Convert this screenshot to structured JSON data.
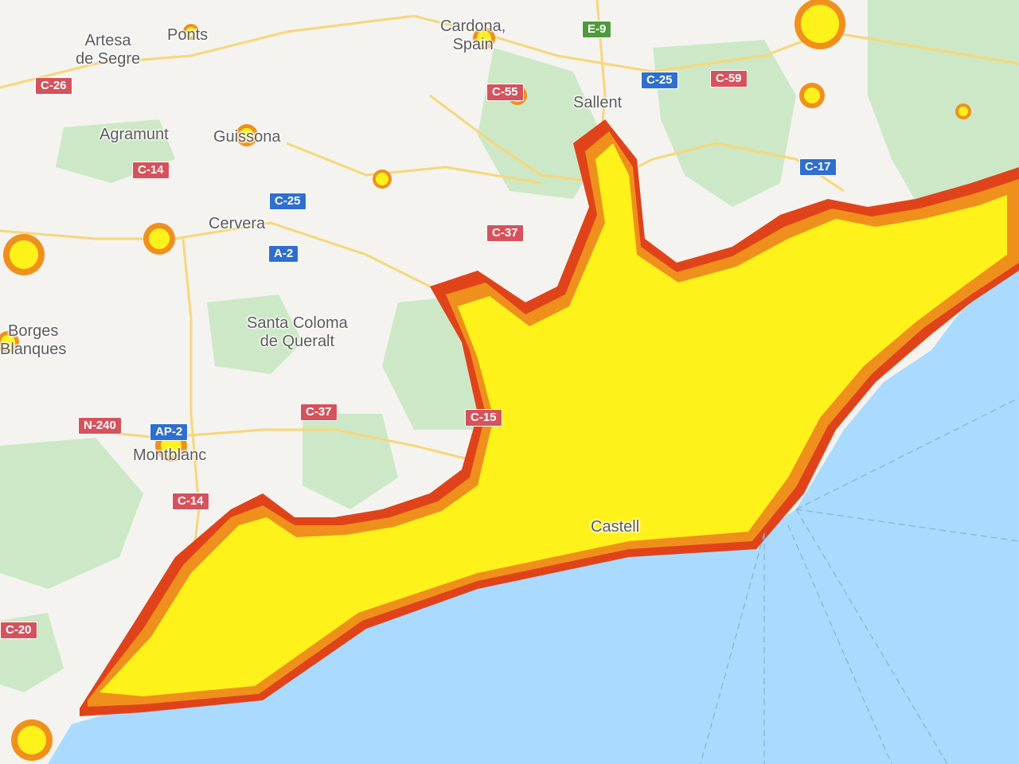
{
  "map": {
    "colors": {
      "sea": "#aadaff",
      "land": "#f4f3f0",
      "forest": "#cde8c7",
      "road": "#f7d77a",
      "heat_low": "#fff21a",
      "heat_mid": "#f0901c",
      "heat_high": "#e0431a"
    },
    "places": [
      {
        "id": "artesa",
        "text": "Artesa\nde Segre"
      },
      {
        "id": "ponts",
        "text": "Ponts"
      },
      {
        "id": "cardona",
        "text": "Cardona,\nSpain"
      },
      {
        "id": "agramunt",
        "text": "Agramunt"
      },
      {
        "id": "guissona",
        "text": "Guissona"
      },
      {
        "id": "cervera",
        "text": "Cervera"
      },
      {
        "id": "santa_coloma",
        "text": "Santa Coloma\nde Queralt"
      },
      {
        "id": "borges",
        "text": "Borges\nBlanques"
      },
      {
        "id": "montblanc",
        "text": "Montblanc"
      },
      {
        "id": "salient",
        "text": "Sallent"
      },
      {
        "id": "castell",
        "text": "Castell"
      }
    ],
    "road_shields": [
      {
        "id": "c26",
        "text": "C-26",
        "kind": "red"
      },
      {
        "id": "c14a",
        "text": "C-14",
        "kind": "red"
      },
      {
        "id": "c25a",
        "text": "C-25",
        "kind": "blue"
      },
      {
        "id": "a2a",
        "text": "A-2",
        "kind": "blue"
      },
      {
        "id": "c55",
        "text": "C-55",
        "kind": "red"
      },
      {
        "id": "e9",
        "text": "E-9",
        "kind": "green"
      },
      {
        "id": "c25b",
        "text": "C-25",
        "kind": "blue"
      },
      {
        "id": "c59",
        "text": "C-59",
        "kind": "red"
      },
      {
        "id": "c17",
        "text": "C-17",
        "kind": "blue"
      },
      {
        "id": "c37a",
        "text": "C-37",
        "kind": "red"
      },
      {
        "id": "c37b",
        "text": "C-37",
        "kind": "red"
      },
      {
        "id": "n240",
        "text": "N-240",
        "kind": "red"
      },
      {
        "id": "ap2",
        "text": "AP-2",
        "kind": "blue"
      },
      {
        "id": "c14b",
        "text": "C-14",
        "kind": "red"
      },
      {
        "id": "c15",
        "text": "C-15",
        "kind": "red"
      },
      {
        "id": "c20",
        "text": "C-20",
        "kind": "red"
      }
    ]
  }
}
